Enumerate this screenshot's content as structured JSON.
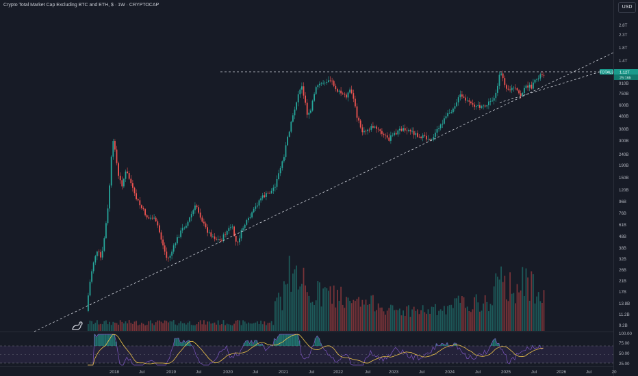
{
  "header": {
    "title": "Crypto Total Market Cap Excluding BTC and ETH, $ · 1W · CRYPTOCAP",
    "currency_button": "USD"
  },
  "price_axis": {
    "ticks": [
      "2.8T",
      "2.3T",
      "1.8T",
      "1.4T",
      "910B",
      "750B",
      "600B",
      "480B",
      "380B",
      "300B",
      "240B",
      "190B",
      "150B",
      "120B",
      "96B",
      "76B",
      "61B",
      "48B",
      "38B",
      "32B",
      "26B",
      "21B",
      "17B",
      "13.8B",
      "11.2B",
      "9.2B"
    ],
    "symbol_tag": "TOTAL3",
    "last_price": "1.12T",
    "countdown": "25:16h"
  },
  "rsi_axis": {
    "ticks": [
      "100.00",
      "75.00",
      "50.00",
      "25.00"
    ]
  },
  "time_axis": {
    "ticks": [
      "2018",
      "Jul",
      "2019",
      "Jul",
      "2020",
      "Jul",
      "2021",
      "Jul",
      "2022",
      "Jul",
      "2023",
      "Jul",
      "2024",
      "Jul",
      "2025",
      "Jul",
      "2026",
      "Jul",
      "20"
    ]
  },
  "colors": {
    "background": "#171b26",
    "up": "#26a69a",
    "down": "#ef5350",
    "rsi_line": "#7e57c2",
    "rsi_ma": "#f2c74a",
    "tag": "#1a9a8c",
    "trendline": "#d1d4dc"
  }
}
